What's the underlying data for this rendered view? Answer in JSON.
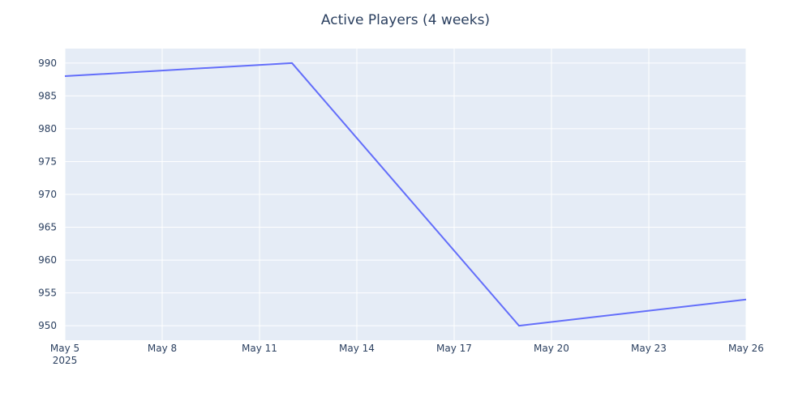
{
  "chart_data": {
    "type": "line",
    "title": "Active Players (4 weeks)",
    "xlabel": "",
    "ylabel": "",
    "x": [
      "2025-05-05",
      "2025-05-12",
      "2025-05-19",
      "2025-05-26"
    ],
    "series": [
      {
        "values": [
          988,
          990,
          950,
          954
        ],
        "color": "#636efa"
      }
    ],
    "xlim": [
      "2025-05-05",
      "2025-05-26"
    ],
    "ylim": [
      947.8,
      992.2
    ],
    "x_ticks": [
      {
        "date": "2025-05-05",
        "label": "May 5",
        "sublabel": "2025"
      },
      {
        "date": "2025-05-08",
        "label": "May 8"
      },
      {
        "date": "2025-05-11",
        "label": "May 11"
      },
      {
        "date": "2025-05-14",
        "label": "May 14"
      },
      {
        "date": "2025-05-17",
        "label": "May 17"
      },
      {
        "date": "2025-05-20",
        "label": "May 20"
      },
      {
        "date": "2025-05-23",
        "label": "May 23"
      },
      {
        "date": "2025-05-26",
        "label": "May 26"
      }
    ],
    "y_ticks": [
      950,
      955,
      960,
      965,
      970,
      975,
      980,
      985,
      990
    ],
    "grid": true,
    "legend": "none",
    "colors": {
      "plot_background": "#e5ecf6",
      "grid": "#ffffff",
      "text": "#2a3f5f"
    }
  }
}
